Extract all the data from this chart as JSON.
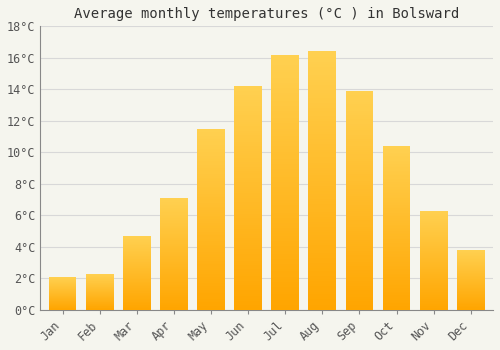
{
  "title": "Average monthly temperatures (°C ) in Bolsward",
  "months": [
    "Jan",
    "Feb",
    "Mar",
    "Apr",
    "May",
    "Jun",
    "Jul",
    "Aug",
    "Sep",
    "Oct",
    "Nov",
    "Dec"
  ],
  "values": [
    2.1,
    2.3,
    4.7,
    7.1,
    11.5,
    14.2,
    16.2,
    16.4,
    13.9,
    10.4,
    6.3,
    3.8
  ],
  "bar_color_bottom": "#FFA500",
  "bar_color_top": "#FFD050",
  "ylim": [
    0,
    18
  ],
  "yticks": [
    0,
    2,
    4,
    6,
    8,
    10,
    12,
    14,
    16,
    18
  ],
  "ytick_labels": [
    "0°C",
    "2°C",
    "4°C",
    "6°C",
    "8°C",
    "10°C",
    "12°C",
    "14°C",
    "16°C",
    "18°C"
  ],
  "background_color": "#f5f5ee",
  "grid_color": "#d8d8d8",
  "title_fontsize": 10,
  "tick_fontsize": 8.5,
  "bar_width": 0.75
}
